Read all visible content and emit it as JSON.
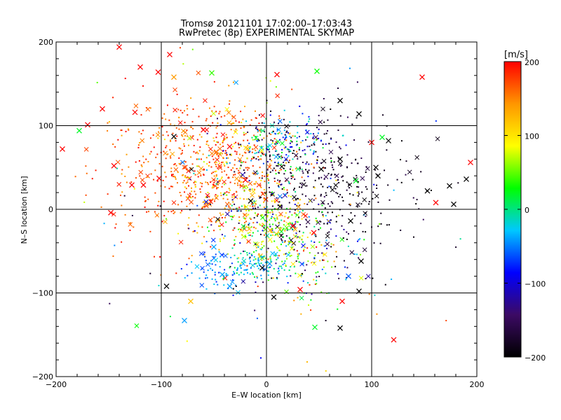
{
  "chart_data": {
    "type": "scatter",
    "title": "Tromsø 20121101 17:02:00–17:03:43",
    "subtitle": "RwPretec (8p) EXPERIMENTAL SKYMAP",
    "xlabel": "E–W location [km]",
    "ylabel": "N–S location [km]",
    "xlim": [
      -200,
      200
    ],
    "ylim": [
      -200,
      200
    ],
    "xticks": [
      -200,
      -100,
      0,
      100,
      200
    ],
    "yticks": [
      -200,
      -100,
      0,
      100,
      200
    ],
    "grid_lines": [
      -100,
      0,
      100
    ],
    "colorbar": {
      "label": "[m/s]",
      "range": [
        -200,
        200
      ],
      "ticks": [
        200,
        100,
        0,
        -100,
        -200
      ],
      "colormap": [
        "#000000",
        "#3c0a64",
        "#0000ff",
        "#00c8ff",
        "#00ff00",
        "#ffff00",
        "#ff9600",
        "#ff0000"
      ]
    },
    "points": [
      {
        "x": -140,
        "y": 194,
        "v": 200,
        "m": "x"
      },
      {
        "x": 148,
        "y": 158,
        "v": 200,
        "m": "x"
      },
      {
        "x": -120,
        "y": 170,
        "v": 200,
        "m": "x"
      },
      {
        "x": -92,
        "y": 185,
        "v": 200,
        "m": "x"
      },
      {
        "x": -103,
        "y": 164,
        "v": 200,
        "m": "x"
      },
      {
        "x": 10,
        "y": 161,
        "v": 200,
        "m": "x"
      },
      {
        "x": 48,
        "y": 165,
        "v": 30,
        "m": "x"
      },
      {
        "x": -178,
        "y": 94,
        "v": 20,
        "m": "x"
      },
      {
        "x": -194,
        "y": 72,
        "v": 200,
        "m": "x"
      },
      {
        "x": -156,
        "y": 120,
        "v": 200,
        "m": "x"
      },
      {
        "x": -125,
        "y": 116,
        "v": 200,
        "m": "x"
      },
      {
        "x": -145,
        "y": 52,
        "v": 200,
        "m": "x"
      },
      {
        "x": -128,
        "y": 29,
        "v": 200,
        "m": "x"
      },
      {
        "x": -117,
        "y": 29,
        "v": 200,
        "m": "x"
      },
      {
        "x": -102,
        "y": 37,
        "v": 200,
        "m": "x"
      },
      {
        "x": -148,
        "y": -4,
        "v": 200,
        "m": "x"
      },
      {
        "x": -170,
        "y": 101,
        "v": 200,
        "m": "x"
      },
      {
        "x": -88,
        "y": 87,
        "v": -200,
        "m": "x"
      },
      {
        "x": 194,
        "y": 56,
        "v": 200,
        "m": "x"
      },
      {
        "x": 190,
        "y": 36,
        "v": -200,
        "m": "x"
      },
      {
        "x": 174,
        "y": 28,
        "v": -200,
        "m": "x"
      },
      {
        "x": 153,
        "y": 22,
        "v": -200,
        "m": "x"
      },
      {
        "x": 161,
        "y": 8,
        "v": 200,
        "m": "x"
      },
      {
        "x": 178,
        "y": 6,
        "v": -200,
        "m": "x"
      },
      {
        "x": 121,
        "y": -156,
        "v": 200,
        "m": "x"
      },
      {
        "x": -72,
        "y": -110,
        "v": 120,
        "m": "x"
      },
      {
        "x": -78,
        "y": -133,
        "v": -40,
        "m": "x"
      },
      {
        "x": 46,
        "y": -141,
        "v": 20,
        "m": "x"
      },
      {
        "x": 70,
        "y": -142,
        "v": -200,
        "m": "x"
      },
      {
        "x": 7,
        "y": -105,
        "v": -200,
        "m": "x"
      },
      {
        "x": -95,
        "y": -92,
        "v": -200,
        "m": "x"
      },
      {
        "x": 110,
        "y": 86,
        "v": 20,
        "m": "x"
      },
      {
        "x": 116,
        "y": 82,
        "v": -200,
        "m": "x"
      },
      {
        "x": 100,
        "y": 80,
        "v": 200,
        "m": "x"
      },
      {
        "x": 88,
        "y": 114,
        "v": -200,
        "m": "x"
      },
      {
        "x": 70,
        "y": 130,
        "v": -200,
        "m": "x"
      },
      {
        "x": -52,
        "y": 163,
        "v": 40,
        "m": "x"
      },
      {
        "x": -88,
        "y": 158,
        "v": 140,
        "m": "x"
      },
      {
        "x": 106,
        "y": 40,
        "v": -200,
        "m": "x"
      },
      {
        "x": 104,
        "y": 50,
        "v": -200,
        "m": "x"
      },
      {
        "x": 85,
        "y": 34,
        "v": 20,
        "m": "x"
      },
      {
        "x": 80,
        "y": -14,
        "v": -200,
        "m": "x"
      },
      {
        "x": 90,
        "y": -62,
        "v": -200,
        "m": "x"
      },
      {
        "x": 78,
        "y": -80,
        "v": -60,
        "m": "x"
      },
      {
        "x": 88,
        "y": -98,
        "v": -200,
        "m": "x"
      },
      {
        "x": -50,
        "y": -45,
        "v": -40,
        "m": "x"
      },
      {
        "x": -42,
        "y": -78,
        "v": -40,
        "m": "x"
      },
      {
        "x": -35,
        "y": -92,
        "v": -40,
        "m": "x"
      },
      {
        "x": 3,
        "y": -65,
        "v": -40,
        "m": "x"
      },
      {
        "x": -4,
        "y": -70,
        "v": -200,
        "m": "x"
      },
      {
        "x": 72,
        "y": -110,
        "v": 200,
        "m": "x"
      },
      {
        "x": 32,
        "y": -96,
        "v": 200,
        "m": "x"
      },
      {
        "x": 70,
        "y": 60,
        "v": -200,
        "m": "x"
      },
      {
        "x": -35,
        "y": 75,
        "v": 200,
        "m": "x"
      },
      {
        "x": -60,
        "y": 95,
        "v": 200,
        "m": "x"
      },
      {
        "x": 52,
        "y": 48,
        "v": -200,
        "m": "x"
      },
      {
        "x": -15,
        "y": 10,
        "v": -200,
        "m": "x"
      },
      {
        "x": 25,
        "y": -20,
        "v": 200,
        "m": "x"
      },
      {
        "x": 45,
        "y": -28,
        "v": 200,
        "m": "x"
      },
      {
        "x": -20,
        "y": 35,
        "v": 200,
        "m": "x"
      }
    ],
    "clusters": [
      {
        "cx": -55,
        "cy": 55,
        "sx": 40,
        "sy": 38,
        "n": 420,
        "vmin": 130,
        "vmax": 200
      },
      {
        "cx": -25,
        "cy": 30,
        "sx": 25,
        "sy": 35,
        "n": 180,
        "vmin": 60,
        "vmax": 200
      },
      {
        "cx": 40,
        "cy": 40,
        "sx": 35,
        "sy": 40,
        "n": 280,
        "vmin": -200,
        "vmax": -150
      },
      {
        "cx": 20,
        "cy": 80,
        "sx": 22,
        "sy": 15,
        "n": 130,
        "vmin": -120,
        "vmax": 40
      },
      {
        "cx": 0,
        "cy": 0,
        "sx": 30,
        "sy": 40,
        "n": 240,
        "vmin": -200,
        "vmax": 200
      },
      {
        "cx": 15,
        "cy": -25,
        "sx": 20,
        "sy": 20,
        "n": 150,
        "vmin": 0,
        "vmax": 130
      },
      {
        "cx": -5,
        "cy": -65,
        "sx": 15,
        "sy": 10,
        "n": 90,
        "vmin": -60,
        "vmax": 20
      },
      {
        "cx": -45,
        "cy": -70,
        "sx": 15,
        "sy": 15,
        "n": 70,
        "vmin": -80,
        "vmax": -20
      },
      {
        "cx": 45,
        "cy": -60,
        "sx": 30,
        "sy": 30,
        "n": 120,
        "vmin": -200,
        "vmax": 200
      },
      {
        "cx": -90,
        "cy": 40,
        "sx": 40,
        "sy": 50,
        "n": 140,
        "vmin": 150,
        "vmax": 200
      },
      {
        "cx": 90,
        "cy": 10,
        "sx": 40,
        "sy": 45,
        "n": 80,
        "vmin": -200,
        "vmax": -170
      },
      {
        "cx": 0,
        "cy": 0,
        "sx": 90,
        "sy": 90,
        "n": 110,
        "vmin": -200,
        "vmax": 200
      }
    ]
  }
}
